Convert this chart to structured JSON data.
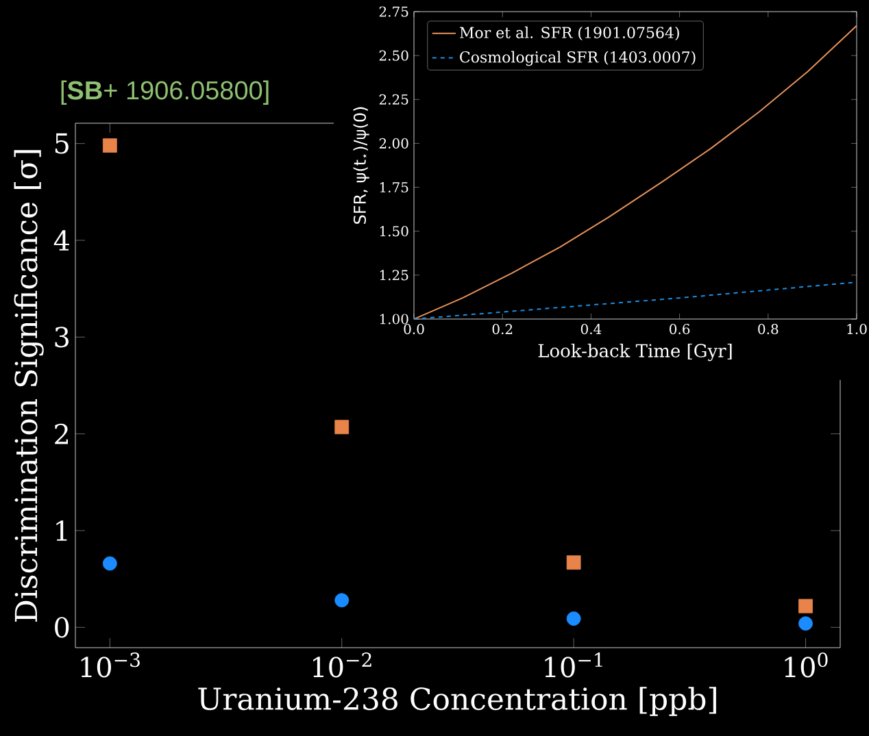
{
  "chart_data": [
    {
      "type": "scatter",
      "title": "[**SB**+ 1906.05800]",
      "xlabel": "Uranium-238 Concentration [ppb]",
      "ylabel": "Discrimination Significance [σ]",
      "log": "x",
      "x": [
        0.001,
        0.01,
        0.1,
        1
      ],
      "xlim": [
        0.00071,
        1.41
      ],
      "ylim": [
        -0.21,
        5.21
      ],
      "xticks": [
        {
          "value": 0.001,
          "label": "10$^{−3}$"
        },
        {
          "value": 0.01,
          "label": "10$^{−2}$"
        },
        {
          "value": 0.1,
          "label": "10$^{−1}$"
        },
        {
          "value": 1,
          "label": "10$^{0}$"
        }
      ],
      "yticks": [
        0,
        1,
        2,
        3,
        4,
        5
      ],
      "legend": false,
      "series": [
        {
          "color": "#e8834a",
          "marker": "square",
          "values": [
            4.98,
            2.07,
            0.67,
            0.22
          ]
        },
        {
          "color": "#1a8cff",
          "marker": "circle",
          "values": [
            0.66,
            0.28,
            0.09,
            0.04
          ]
        }
      ]
    },
    {
      "type": "line",
      "xlabel": "Look-back Time [Gyr]",
      "ylabel": "SFR, ψ(t$_{⋆}$)/ψ(0)",
      "xlim": [
        0,
        1
      ],
      "ylim": [
        1,
        2.75
      ],
      "xticks": [
        {
          "value": 0,
          "label": "0.0"
        },
        {
          "value": 0.2,
          "label": "0.2"
        },
        {
          "value": 0.4,
          "label": "0.4"
        },
        {
          "value": 0.6,
          "label": "0.6"
        },
        {
          "value": 0.8,
          "label": "0.8"
        },
        {
          "value": 1,
          "label": "1.0"
        }
      ],
      "yticks": [
        {
          "value": 1,
          "label": "1.00"
        },
        {
          "value": 1.25,
          "label": "1.25"
        },
        {
          "value": 1.5,
          "label": "1.50"
        },
        {
          "value": 1.75,
          "label": "1.75"
        },
        {
          "value": 2,
          "label": "2.00"
        },
        {
          "value": 2.25,
          "label": "2.25"
        },
        {
          "value": 2.5,
          "label": "2.50"
        },
        {
          "value": 2.75,
          "label": "2.75"
        }
      ],
      "legend": "top left",
      "series": [
        {
          "name": "Mor et al. SFR (1901.07564)",
          "color": "#e8915a",
          "line_style": "solid",
          "x": [
            0,
            0.11,
            0.22,
            0.33,
            0.44,
            0.56,
            0.67,
            0.78,
            0.89,
            1.0
          ],
          "values": [
            1.0,
            1.12,
            1.26,
            1.41,
            1.58,
            1.78,
            1.97,
            2.18,
            2.41,
            2.67
          ]
        },
        {
          "name": "Cosmological SFR (1403.0007)",
          "color": "#1a8fe6",
          "line_style": "dashed",
          "x": [
            0,
            0.2,
            0.4,
            0.6,
            0.8,
            1.0
          ],
          "values": [
            1.0,
            1.04,
            1.08,
            1.12,
            1.165,
            1.21
          ]
        }
      ]
    }
  ]
}
